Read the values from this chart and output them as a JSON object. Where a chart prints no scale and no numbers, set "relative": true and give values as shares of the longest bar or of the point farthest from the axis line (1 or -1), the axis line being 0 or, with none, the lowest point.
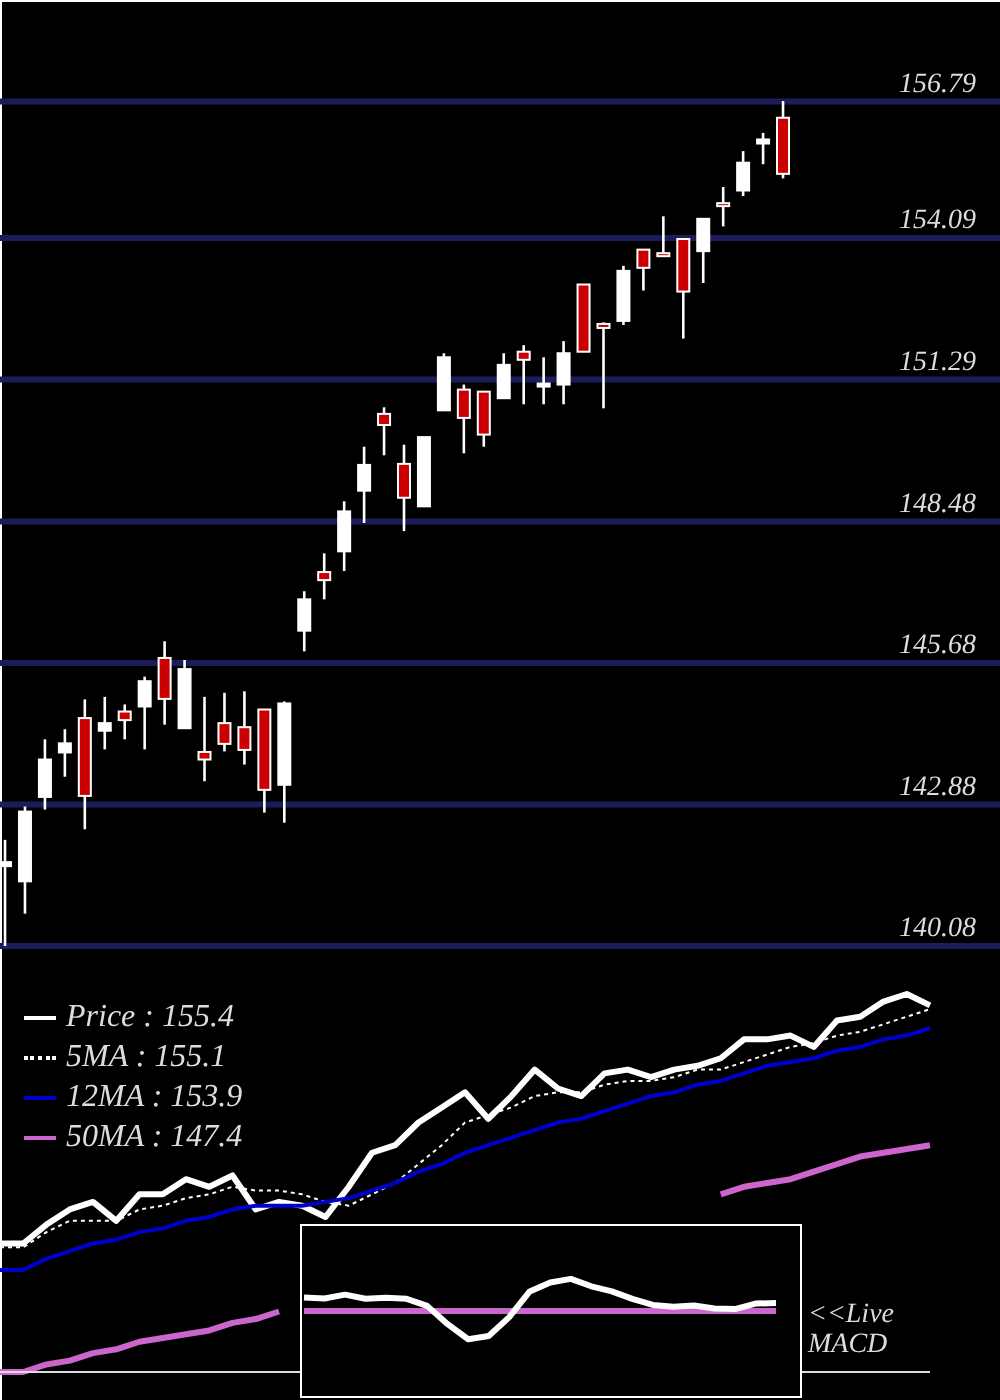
{
  "chart_data": [
    {
      "type": "candlestick",
      "categories": [
        null,
        null,
        null,
        null,
        null,
        null,
        null,
        null,
        null,
        null,
        null,
        null,
        null,
        null,
        null,
        null,
        null,
        null,
        null,
        null,
        null,
        null,
        null,
        null,
        null,
        null,
        null,
        null,
        null,
        null,
        null,
        null,
        null,
        null,
        null,
        null,
        null,
        null,
        null,
        null
      ],
      "ohlc": [
        [
          141.66,
          142.18,
          140.08,
          141.74
        ],
        [
          141.36,
          142.84,
          140.72,
          142.74
        ],
        [
          143.03,
          144.17,
          142.78,
          143.77
        ],
        [
          143.91,
          144.37,
          143.43,
          144.09
        ],
        [
          144.59,
          144.96,
          142.39,
          143.05
        ],
        [
          144.34,
          145.01,
          143.97,
          144.49
        ],
        [
          144.72,
          144.86,
          144.17,
          144.55
        ],
        [
          144.82,
          145.41,
          143.97,
          145.32
        ],
        [
          145.78,
          146.11,
          144.46,
          144.97
        ],
        [
          144.39,
          145.74,
          144.39,
          145.56
        ],
        [
          143.92,
          145.01,
          143.34,
          143.77
        ],
        [
          144.49,
          145.09,
          143.93,
          144.08
        ],
        [
          144.41,
          145.12,
          143.67,
          143.96
        ],
        [
          144.76,
          144.76,
          142.72,
          143.17
        ],
        [
          143.27,
          144.92,
          142.52,
          144.88
        ],
        [
          146.32,
          147.1,
          145.91,
          146.94
        ],
        [
          147.48,
          147.85,
          146.94,
          147.32
        ],
        [
          147.89,
          148.88,
          147.5,
          148.68
        ],
        [
          149.09,
          149.96,
          148.45,
          149.6
        ],
        [
          150.61,
          150.74,
          149.79,
          150.39
        ],
        [
          149.62,
          150.0,
          148.29,
          148.95
        ],
        [
          148.78,
          150.15,
          148.78,
          150.15
        ],
        [
          150.68,
          151.81,
          150.68,
          151.73
        ],
        [
          151.09,
          151.19,
          149.83,
          150.53
        ],
        [
          151.05,
          151.05,
          149.96,
          150.2
        ],
        [
          150.92,
          151.81,
          150.92,
          151.58
        ],
        [
          151.84,
          151.97,
          150.8,
          151.68
        ],
        [
          151.15,
          151.73,
          150.8,
          151.21
        ],
        [
          151.19,
          152.05,
          150.8,
          151.81
        ],
        [
          153.17,
          153.17,
          151.84,
          151.84
        ],
        [
          152.39,
          152.42,
          150.72,
          152.31
        ],
        [
          152.45,
          153.54,
          152.37,
          153.44
        ],
        [
          153.86,
          153.86,
          153.05,
          153.5
        ],
        [
          153.79,
          154.52,
          153.74,
          153.74
        ],
        [
          154.07,
          154.07,
          152.1,
          153.03
        ],
        [
          153.83,
          154.47,
          153.2,
          154.47
        ],
        [
          154.78,
          155.1,
          154.32,
          154.73
        ],
        [
          155.03,
          155.81,
          154.92,
          155.58
        ],
        [
          155.96,
          156.17,
          155.55,
          156.04
        ],
        [
          156.47,
          156.8,
          155.27,
          155.36
        ]
      ],
      "colors": [
        "#ffffff",
        "#ffffff",
        "#ffffff",
        "#ffffff",
        "#cc0000",
        "#ffffff",
        "#cc0000",
        "#ffffff",
        "#cc0000",
        "#ffffff",
        "#cc0000",
        "#cc0000",
        "#cc0000",
        "#cc0000",
        "#ffffff",
        "#ffffff",
        "#cc0000",
        "#ffffff",
        "#ffffff",
        "#cc0000",
        "#cc0000",
        "#ffffff",
        "#ffffff",
        "#cc0000",
        "#cc0000",
        "#ffffff",
        "#cc0000",
        "#ffffff",
        "#ffffff",
        "#cc0000",
        "#cc0000",
        "#ffffff",
        "#cc0000",
        "#cc0000",
        "#cc0000",
        "#ffffff",
        "#cc0000",
        "#ffffff",
        "#ffffff",
        "#cc0000"
      ],
      "ylim": [
        140.08,
        158.8
      ],
      "yticks": [
        140.08,
        142.88,
        145.68,
        148.48,
        151.29,
        154.09,
        156.79
      ],
      "grid": "y",
      "tick_labels": "y"
    },
    {
      "type": "line",
      "relative": true,
      "tick_labels": false,
      "legend": "top left",
      "categories": [
        null,
        null,
        null,
        null,
        null,
        null,
        null,
        null,
        null,
        null,
        null,
        null,
        null,
        null,
        null,
        null,
        null,
        null,
        null,
        null,
        null,
        null,
        null,
        null,
        null,
        null,
        null,
        null,
        null,
        null,
        null,
        null,
        null,
        null,
        null,
        null,
        null,
        null,
        null,
        null,
        null
      ],
      "series": [
        {
          "name": "Price : 155.4",
          "color": "#ffffff",
          "values": [
            0.34,
            0.34,
            0.39,
            0.43,
            0.45,
            0.4,
            0.47,
            0.47,
            0.51,
            0.49,
            0.52,
            0.43,
            0.45,
            0.44,
            0.41,
            0.49,
            0.58,
            0.6,
            0.66,
            0.7,
            0.74,
            0.67,
            0.73,
            0.8,
            0.75,
            0.73,
            0.79,
            0.8,
            0.78,
            0.8,
            0.81,
            0.83,
            0.88,
            0.88,
            0.89,
            0.86,
            0.93,
            0.94,
            0.98,
            1.0,
            0.97
          ]
        },
        {
          "name": "5MA : 155.1",
          "color": "#ffffff",
          "line_style": "dotted",
          "values": [
            0.33,
            0.33,
            0.37,
            0.4,
            0.4,
            0.4,
            0.43,
            0.44,
            0.46,
            0.47,
            0.49,
            0.48,
            0.48,
            0.47,
            0.45,
            0.44,
            0.47,
            0.5,
            0.55,
            0.6,
            0.66,
            0.68,
            0.7,
            0.73,
            0.74,
            0.74,
            0.76,
            0.77,
            0.77,
            0.78,
            0.8,
            0.8,
            0.82,
            0.84,
            0.86,
            0.87,
            0.89,
            0.9,
            0.92,
            0.94,
            0.96
          ]
        },
        {
          "name": "12MA : 153.9",
          "color": "#0000cc",
          "values": [
            0.27,
            0.27,
            0.3,
            0.32,
            0.34,
            0.35,
            0.37,
            0.38,
            0.4,
            0.41,
            0.43,
            0.44,
            0.44,
            0.44,
            0.45,
            0.46,
            0.48,
            0.5,
            0.53,
            0.55,
            0.58,
            0.6,
            0.62,
            0.64,
            0.66,
            0.67,
            0.69,
            0.71,
            0.73,
            0.74,
            0.76,
            0.77,
            0.79,
            0.81,
            0.82,
            0.83,
            0.85,
            0.86,
            0.88,
            0.89,
            0.91
          ]
        },
        {
          "name": "50MA : 147.4",
          "color": "#cc66cc",
          "values": [
            0.0,
            0.0,
            0.02,
            0.03,
            0.05,
            0.06,
            0.08,
            0.09,
            0.1,
            0.11,
            0.13,
            0.14,
            0.16,
            null,
            null,
            null,
            null,
            null,
            null,
            null,
            null,
            null,
            null,
            null,
            null,
            null,
            null,
            null,
            null,
            null,
            null,
            0.47,
            0.49,
            0.5,
            0.51,
            0.53,
            0.55,
            0.57,
            0.58,
            0.59,
            0.6
          ]
        }
      ]
    },
    {
      "type": "line",
      "relative": true,
      "tick_labels": false,
      "categories": [
        null,
        null,
        null,
        null,
        null,
        null,
        null,
        null,
        null,
        null,
        null,
        null,
        null,
        null,
        null,
        null,
        null,
        null,
        null,
        null,
        null,
        null,
        null,
        null
      ],
      "series": [
        {
          "color": "#ffffff",
          "values": [
            0.42,
            0.39,
            0.51,
            0.38,
            0.41,
            0.38,
            0.16,
            -0.41,
            -0.88,
            -0.78,
            -0.19,
            0.61,
            0.89,
            1.0,
            0.77,
            0.61,
            0.38,
            0.19,
            0.13,
            0.17,
            0.08,
            0.06,
            0.23,
            0.25
          ]
        }
      ],
      "ref_lines": [
        {
          "axis": "y",
          "value": 0,
          "color": "#cc66cc"
        }
      ],
      "annotations": [
        "<<Live MACD"
      ]
    }
  ]
}
